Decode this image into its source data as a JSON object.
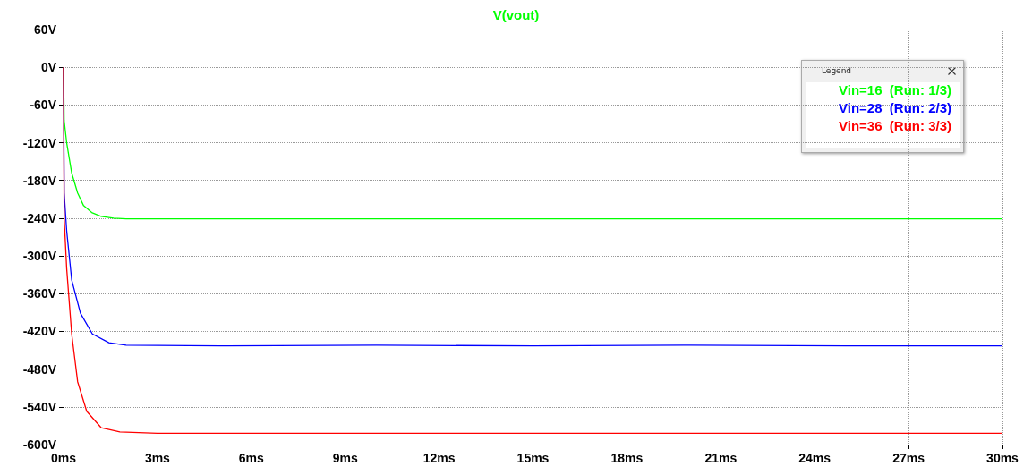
{
  "chart_data": {
    "type": "line",
    "title": "V(vout)",
    "legend_title": "Legend",
    "legend": "top right",
    "grid": true,
    "marker": "none",
    "line_style": "solid",
    "xlim": [
      0,
      30
    ],
    "ylim": [
      -600,
      60
    ],
    "xticks": [
      {
        "value": 0,
        "label": "0ms"
      },
      {
        "value": 3,
        "label": "3ms"
      },
      {
        "value": 6,
        "label": "6ms"
      },
      {
        "value": 9,
        "label": "9ms"
      },
      {
        "value": 12,
        "label": "12ms"
      },
      {
        "value": 15,
        "label": "15ms"
      },
      {
        "value": 18,
        "label": "18ms"
      },
      {
        "value": 21,
        "label": "21ms"
      },
      {
        "value": 24,
        "label": "24ms"
      },
      {
        "value": 27,
        "label": "27ms"
      },
      {
        "value": 30,
        "label": "30ms"
      }
    ],
    "yticks": [
      {
        "value": 60,
        "label": "60V"
      },
      {
        "value": 0,
        "label": "0V"
      },
      {
        "value": -60,
        "label": "-60V"
      },
      {
        "value": -120,
        "label": "-120V"
      },
      {
        "value": -180,
        "label": "-180V"
      },
      {
        "value": -240,
        "label": "-240V"
      },
      {
        "value": -300,
        "label": "-300V"
      },
      {
        "value": -360,
        "label": "-360V"
      },
      {
        "value": -420,
        "label": "-420V"
      },
      {
        "value": -480,
        "label": "-480V"
      },
      {
        "value": -540,
        "label": "-540V"
      },
      {
        "value": -600,
        "label": "-600V"
      }
    ],
    "series": [
      {
        "name": "Vin=16  (Run: 1/3)",
        "color": "#00ff00",
        "x": [
          0,
          0.02,
          0.1,
          0.26,
          0.45,
          0.64,
          0.9,
          1.2,
          1.6,
          2,
          5,
          10,
          15,
          20,
          25,
          30
        ],
        "values": [
          0,
          -85,
          -120,
          -168,
          -200,
          -220,
          -231,
          -237,
          -240,
          -241,
          -241,
          -241,
          -241,
          -241,
          -241,
          -241
        ]
      },
      {
        "name": "Vin=28  (Run: 2/3)",
        "color": "#0000ff",
        "x": [
          0,
          0.02,
          0.1,
          0.26,
          0.54,
          0.92,
          1.45,
          2,
          5,
          10,
          15,
          20,
          25,
          30
        ],
        "values": [
          0,
          -200,
          -260,
          -338,
          -391,
          -424,
          -438,
          -442,
          -443,
          -442,
          -443,
          -442,
          -443,
          -443
        ]
      },
      {
        "name": "Vin=36  (Run: 3/3)",
        "color": "#ff0000",
        "x": [
          0,
          0.02,
          0.1,
          0.26,
          0.45,
          0.74,
          1.2,
          1.8,
          3,
          5,
          10,
          15,
          20,
          25,
          30
        ],
        "values": [
          0,
          -240,
          -320,
          -424,
          -500,
          -547,
          -573,
          -580,
          -582,
          -582,
          -582,
          -582,
          -582,
          -582,
          -582
        ]
      }
    ]
  }
}
